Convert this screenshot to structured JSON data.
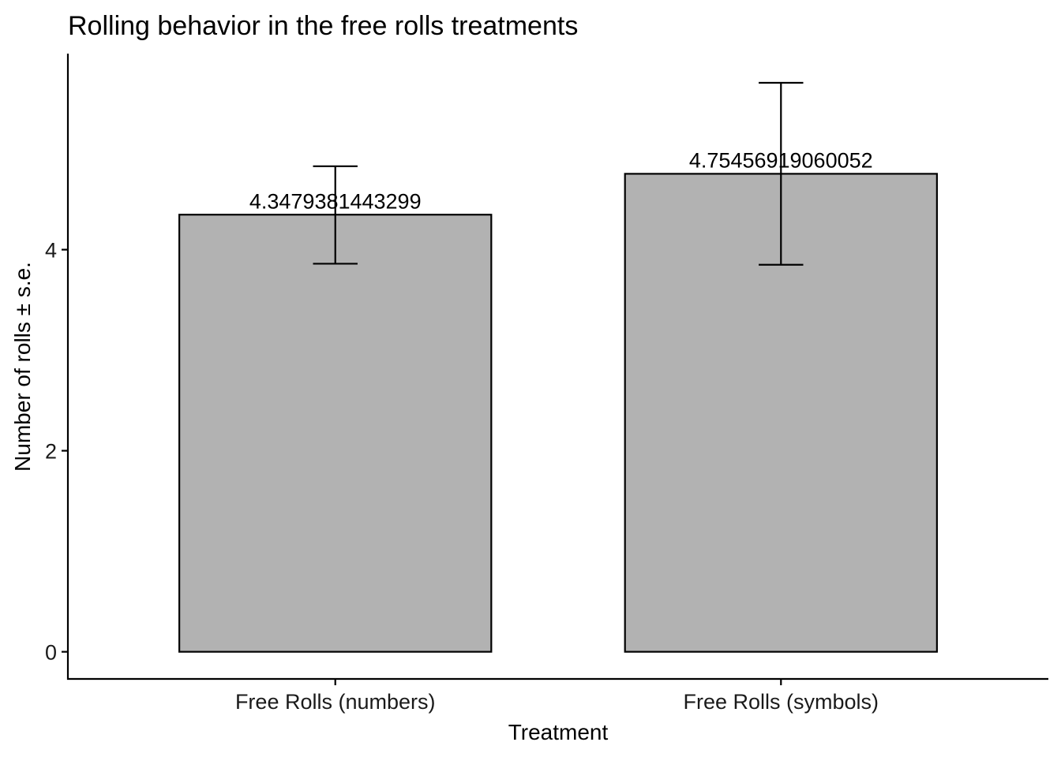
{
  "chart_data": {
    "type": "bar",
    "title": "Rolling behavior in the free rolls treatments",
    "xlabel": "Treatment",
    "ylabel": "Number of rolls ± s.e.",
    "categories": [
      "Free Rolls (numbers)",
      "Free Rolls (symbols)"
    ],
    "values": [
      4.3479381443299,
      4.75456919060052
    ],
    "value_labels": [
      "4.3479381443299",
      "4.75456919060052"
    ],
    "error_lower": [
      3.86,
      3.85
    ],
    "error_upper": [
      4.83,
      5.66
    ],
    "yticks": [
      0,
      2,
      4
    ],
    "ytick_labels": [
      "0",
      "2",
      "4"
    ],
    "ylim": [
      -0.27,
      5.95
    ],
    "grid": false,
    "legend": "none",
    "colors": {
      "bar_fill": "#b2b2b2",
      "bar_stroke": "#000000",
      "axis": "#000000",
      "error_bar": "#000000"
    }
  }
}
